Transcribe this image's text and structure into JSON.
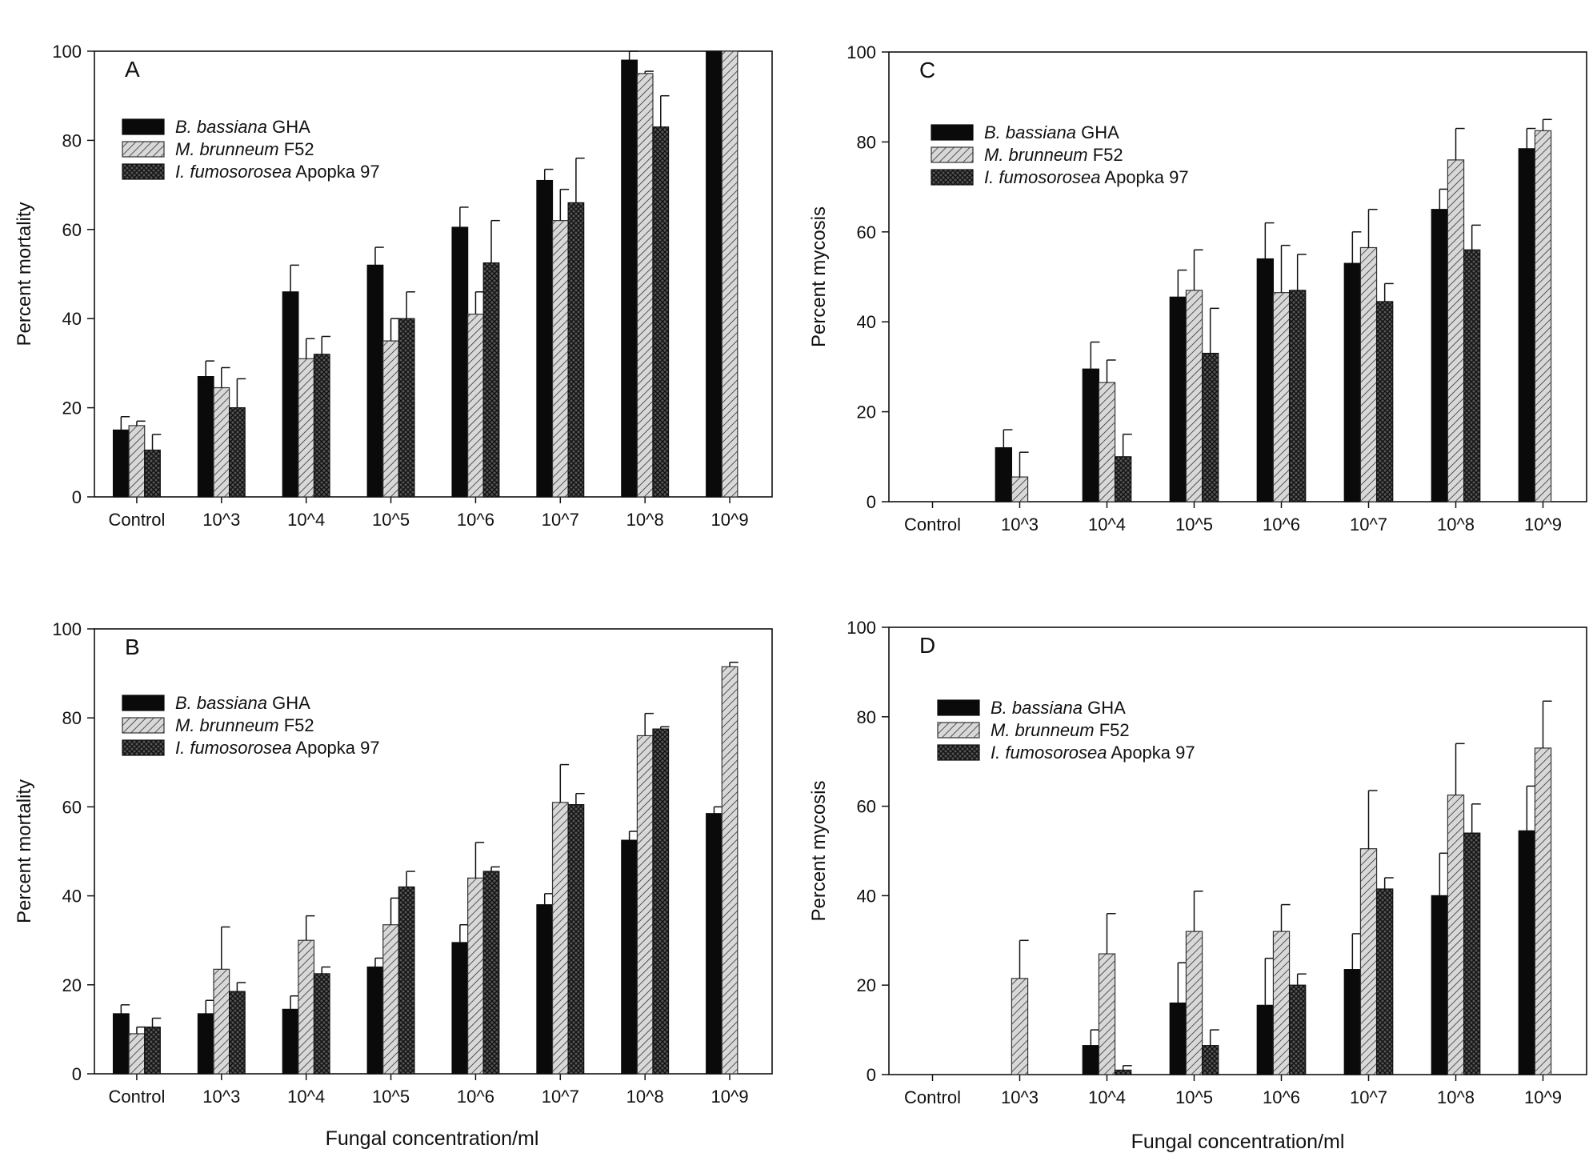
{
  "figure": {
    "xaxis_title": "Fungal concentration/ml"
  },
  "legend": [
    {
      "genus": "B. bassiana",
      "strain": "GHA",
      "pattern": "solid-black"
    },
    {
      "genus": "M. brunneum",
      "strain": "F52",
      "pattern": "diagonal-hatch"
    },
    {
      "genus": "I. fumosorosea",
      "strain": "Apopka 97",
      "pattern": "crosshatch"
    }
  ],
  "chart_data": [
    {
      "panel": "A",
      "type": "bar",
      "ylabel": "Percent mortality",
      "ylim": [
        0,
        100
      ],
      "yticks": [
        0,
        20,
        40,
        60,
        80,
        100
      ],
      "categories": [
        "Control",
        "10^3",
        "10^4",
        "10^5",
        "10^6",
        "10^7",
        "10^8",
        "10^9"
      ],
      "series": [
        {
          "name": "B. bassiana GHA",
          "values": [
            15,
            27,
            46,
            52,
            60.5,
            71,
            98,
            100
          ],
          "errors": [
            3,
            3.5,
            6,
            4,
            4.5,
            2.5,
            2,
            0
          ]
        },
        {
          "name": "M. brunneum F52",
          "values": [
            16,
            24.5,
            31,
            35,
            41,
            62,
            95,
            100
          ],
          "errors": [
            1,
            4.5,
            4.5,
            5,
            5,
            7,
            0.5,
            0
          ]
        },
        {
          "name": "I. fumosorosea Apopka 97",
          "values": [
            10.5,
            20,
            32,
            40,
            52.5,
            66,
            83,
            null
          ],
          "errors": [
            3.5,
            6.5,
            4,
            6,
            9.5,
            10,
            7,
            null
          ]
        }
      ],
      "xlabel": "",
      "legend_position": "upper-left"
    },
    {
      "panel": "B",
      "type": "bar",
      "ylabel": "Percent mortality",
      "ylim": [
        0,
        100
      ],
      "yticks": [
        0,
        20,
        40,
        60,
        80,
        100
      ],
      "categories": [
        "Control",
        "10^3",
        "10^4",
        "10^5",
        "10^6",
        "10^7",
        "10^8",
        "10^9"
      ],
      "series": [
        {
          "name": "B. bassiana GHA",
          "values": [
            13.5,
            13.5,
            14.5,
            24,
            29.5,
            38,
            52.5,
            58.5
          ],
          "errors": [
            2,
            3,
            3,
            2,
            4,
            2.5,
            2,
            1.5
          ]
        },
        {
          "name": "M. brunneum F52",
          "values": [
            9,
            23.5,
            30,
            33.5,
            44,
            61,
            76,
            91.5
          ],
          "errors": [
            1.5,
            9.5,
            5.5,
            6,
            8,
            8.5,
            5,
            1
          ]
        },
        {
          "name": "I. fumosorosea Apopka 97",
          "values": [
            10.5,
            18.5,
            22.5,
            42,
            45.5,
            60.5,
            77.5,
            null
          ],
          "errors": [
            2,
            2,
            1.5,
            3.5,
            1,
            2.5,
            0.5,
            null
          ]
        }
      ],
      "xlabel": "Fungal concentration/ml",
      "legend_position": "upper-left"
    },
    {
      "panel": "C",
      "type": "bar",
      "ylabel": "Percent mycosis",
      "ylim": [
        0,
        100
      ],
      "yticks": [
        0,
        20,
        40,
        60,
        80,
        100
      ],
      "categories": [
        "Control",
        "10^3",
        "10^4",
        "10^5",
        "10^6",
        "10^7",
        "10^8",
        "10^9"
      ],
      "series": [
        {
          "name": "B. bassiana GHA",
          "values": [
            0,
            12,
            29.5,
            45.5,
            54,
            53,
            65,
            78.5
          ],
          "errors": [
            0,
            4,
            6,
            6,
            8,
            7,
            4.5,
            4.5
          ]
        },
        {
          "name": "M. brunneum F52",
          "values": [
            0,
            5.5,
            26.5,
            47,
            46.5,
            56.5,
            76,
            82.5
          ],
          "errors": [
            0,
            5.5,
            5,
            9,
            10.5,
            8.5,
            7,
            2.5
          ]
        },
        {
          "name": "I. fumosorosea Apopka 97",
          "values": [
            0,
            null,
            10,
            33,
            47,
            44.5,
            56,
            null
          ],
          "errors": [
            0,
            null,
            5,
            10,
            8,
            4,
            5.5,
            null
          ]
        }
      ],
      "xlabel": "",
      "legend_position": "upper-left"
    },
    {
      "panel": "D",
      "type": "bar",
      "ylabel": "Percent mycosis",
      "ylim": [
        0,
        100
      ],
      "yticks": [
        0,
        20,
        40,
        60,
        80,
        100
      ],
      "categories": [
        "Control",
        "10^3",
        "10^4",
        "10^5",
        "10^6",
        "10^7",
        "10^8",
        "10^9"
      ],
      "series": [
        {
          "name": "B. bassiana GHA",
          "values": [
            0,
            0,
            6.5,
            16,
            15.5,
            23.5,
            40,
            54.5
          ],
          "errors": [
            0,
            0,
            3.5,
            9,
            10.5,
            8,
            9.5,
            10
          ]
        },
        {
          "name": "M. brunneum F52",
          "values": [
            0,
            21.5,
            27,
            32,
            32,
            50.5,
            62.5,
            73
          ],
          "errors": [
            0,
            8.5,
            9,
            9,
            6,
            13,
            11.5,
            10.5
          ]
        },
        {
          "name": "I. fumosorosea Apopka 97",
          "values": [
            0,
            null,
            1,
            6.5,
            20,
            41.5,
            54,
            null
          ],
          "errors": [
            0,
            null,
            1,
            3.5,
            2.5,
            2.5,
            6.5,
            null
          ]
        }
      ],
      "xlabel": "Fungal concentration/ml",
      "legend_position": "upper-left"
    }
  ]
}
